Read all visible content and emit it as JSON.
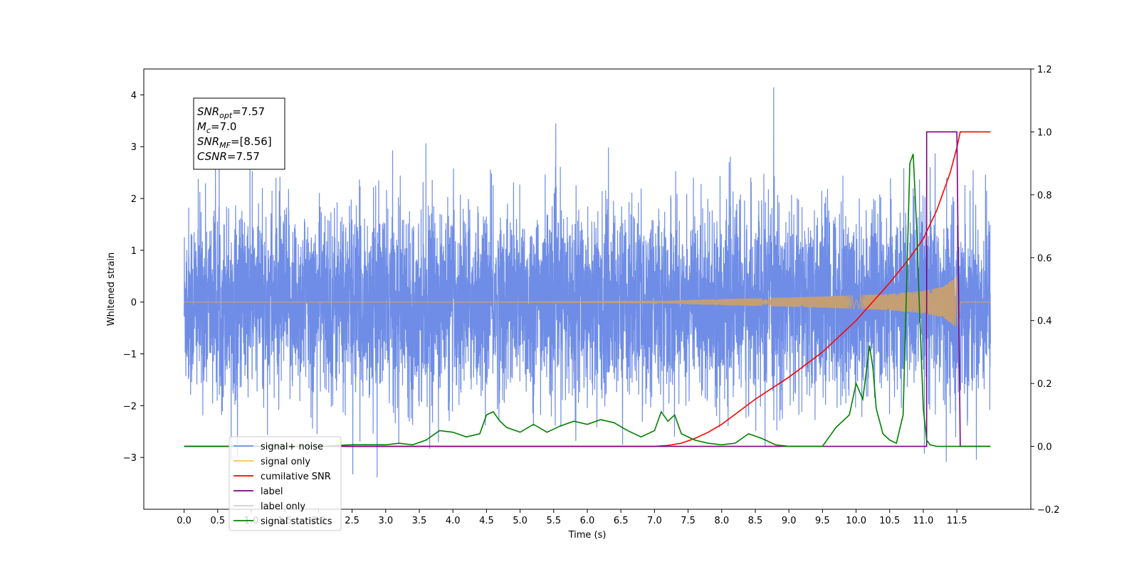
{
  "chart_data": {
    "type": "line",
    "title": "",
    "xlabel": "Time (s)",
    "ylabel": "Whitened strain",
    "xlim": [
      -0.6,
      12.6
    ],
    "ylim": [
      -4.0,
      4.5
    ],
    "y2lim": [
      -0.2,
      1.2
    ],
    "x_ticks": [
      0.0,
      0.5,
      1.0,
      1.5,
      2.0,
      2.5,
      3.0,
      3.5,
      4.0,
      4.5,
      5.0,
      5.5,
      6.0,
      6.5,
      7.0,
      7.5,
      8.0,
      8.5,
      9.0,
      9.5,
      10.0,
      10.5,
      11.0,
      11.5
    ],
    "x_tick_labels": [
      "0.0",
      "0.5",
      "1.0",
      "1.5",
      "2.0",
      "2.5",
      "3.0",
      "3.5",
      "4.0",
      "4.5",
      "5.0",
      "5.5",
      "6.0",
      "6.5",
      "7.0",
      "7.5",
      "8.0",
      "8.5",
      "9.0",
      "9.5",
      "10.0",
      "10.5",
      "11.0",
      "11.5"
    ],
    "y_ticks": [
      -3,
      -2,
      -1,
      0,
      1,
      2,
      3,
      4
    ],
    "y_tick_labels": [
      "−3",
      "−2",
      "−1",
      "0",
      "1",
      "2",
      "3",
      "4"
    ],
    "y2_ticks": [
      -0.2,
      0.0,
      0.2,
      0.4,
      0.6,
      0.8,
      1.0,
      1.2
    ],
    "y2_tick_labels": [
      "−0.2",
      "0.0",
      "0.2",
      "0.4",
      "0.6",
      "0.8",
      "1.0",
      "1.2"
    ],
    "legend_position": "lower-left",
    "legend": [
      {
        "label": "signal+ noise",
        "color": "#6f8de6"
      },
      {
        "label": "signal only",
        "color": "#ffbf5a"
      },
      {
        "label": "cumilative SNR",
        "color": "#ff0000"
      },
      {
        "label": "label",
        "color": "#800080"
      },
      {
        "label": "label only",
        "color": "#d0d0d0"
      },
      {
        "label": "signal statistics",
        "color": "#008000"
      }
    ],
    "annotation": {
      "lines": [
        {
          "base": "SNR",
          "sub": "opt",
          "rest": "=7.57"
        },
        {
          "base": "M",
          "sub": "c",
          "rest": "=7.0"
        },
        {
          "base": "SNR",
          "sub": "MF",
          "rest": "=[8.56]"
        },
        {
          "base": "CSNR",
          "sub": "",
          "rest": "=7.57"
        }
      ]
    },
    "series": [
      {
        "name": "signal+ noise",
        "axis": "left",
        "color": "#6f8de6",
        "noise_sigma": 0.9,
        "x_start": 0.0,
        "x_end": 12.0
      },
      {
        "name": "signal only",
        "axis": "left",
        "color": "#c8a070",
        "envelope": [
          [
            0.0,
            0.0
          ],
          [
            7.0,
            0.01
          ],
          [
            7.5,
            0.04
          ],
          [
            8.0,
            0.06
          ],
          [
            9.0,
            0.09
          ],
          [
            10.0,
            0.13
          ],
          [
            10.5,
            0.16
          ],
          [
            11.0,
            0.22
          ],
          [
            11.3,
            0.3
          ],
          [
            11.5,
            0.5
          ],
          [
            11.52,
            0.55
          ],
          [
            11.55,
            0.0
          ],
          [
            12.0,
            0.0
          ]
        ]
      },
      {
        "name": "cumilative SNR",
        "axis": "right",
        "color": "#ff0000",
        "x": [
          0.0,
          6.5,
          7.0,
          7.2,
          7.4,
          7.6,
          7.8,
          8.0,
          8.5,
          9.0,
          9.5,
          10.0,
          10.5,
          10.8,
          11.0,
          11.2,
          11.4,
          11.5,
          11.55,
          11.6,
          12.0
        ],
        "values": [
          0.0,
          0.0,
          0.0,
          0.003,
          0.01,
          0.025,
          0.045,
          0.07,
          0.15,
          0.22,
          0.3,
          0.4,
          0.52,
          0.6,
          0.66,
          0.75,
          0.87,
          0.95,
          1.0,
          1.0,
          1.0
        ]
      },
      {
        "name": "label",
        "axis": "right",
        "color": "#800080",
        "x": [
          0.0,
          11.0,
          11.0,
          11.05,
          11.05,
          11.5,
          11.5,
          11.55,
          11.55,
          12.0
        ],
        "values": [
          0.0,
          0.0,
          0.0,
          0.0,
          1.0,
          1.0,
          1.0,
          0.0,
          0.0,
          0.0
        ]
      },
      {
        "name": "signal statistics",
        "axis": "right",
        "color": "#008000",
        "x": [
          0.0,
          2.0,
          2.5,
          3.0,
          3.2,
          3.4,
          3.6,
          3.8,
          4.0,
          4.2,
          4.4,
          4.5,
          4.6,
          4.7,
          4.8,
          5.0,
          5.2,
          5.4,
          5.6,
          5.8,
          6.0,
          6.2,
          6.4,
          6.6,
          6.8,
          7.0,
          7.1,
          7.2,
          7.3,
          7.4,
          7.6,
          7.8,
          8.0,
          8.2,
          8.4,
          8.6,
          8.8,
          9.0,
          9.5,
          9.7,
          9.9,
          10.0,
          10.1,
          10.2,
          10.25,
          10.3,
          10.4,
          10.5,
          10.6,
          10.7,
          10.75,
          10.8,
          10.85,
          10.9,
          10.95,
          11.0,
          11.05,
          11.1,
          11.2,
          12.0
        ],
        "values": [
          0.0,
          0.0,
          0.005,
          0.005,
          0.01,
          0.005,
          0.02,
          0.05,
          0.045,
          0.03,
          0.04,
          0.1,
          0.11,
          0.08,
          0.06,
          0.045,
          0.07,
          0.045,
          0.065,
          0.08,
          0.07,
          0.085,
          0.075,
          0.05,
          0.03,
          0.05,
          0.11,
          0.08,
          0.1,
          0.04,
          0.02,
          0.01,
          0.005,
          0.01,
          0.04,
          0.025,
          0.005,
          0.0,
          0.0,
          0.06,
          0.1,
          0.2,
          0.15,
          0.32,
          0.25,
          0.12,
          0.04,
          0.02,
          0.01,
          0.1,
          0.5,
          0.9,
          0.93,
          0.7,
          0.4,
          0.12,
          0.02,
          0.005,
          0.0,
          0.0
        ]
      }
    ]
  }
}
